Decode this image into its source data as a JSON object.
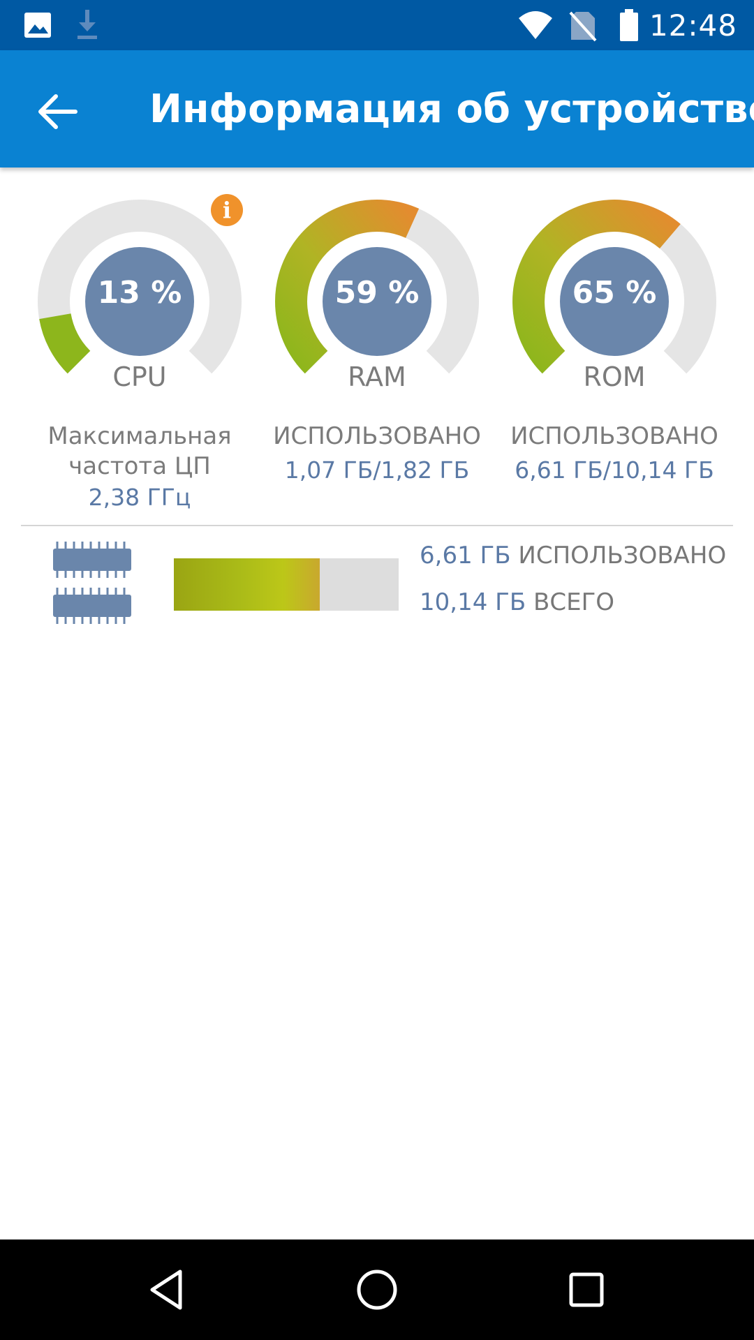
{
  "status_bar": {
    "time": "12:48",
    "icons": [
      "image-icon",
      "download-icon",
      "wifi-icon",
      "no-sim-icon",
      "battery-icon"
    ]
  },
  "app_bar": {
    "title": "Информация об устройстве",
    "back_icon": "arrow-left-icon"
  },
  "gauges": [
    {
      "id": "cpu",
      "percent_label": "13 %",
      "value": 0.13,
      "name": "CPU"
    },
    {
      "id": "ram",
      "percent_label": "59 %",
      "value": 0.59,
      "name": "RAM"
    },
    {
      "id": "rom",
      "percent_label": "65 %",
      "value": 0.65,
      "name": "ROM"
    }
  ],
  "info_badge": "i",
  "details": {
    "cpu": {
      "label_line1": "Максимальная",
      "label_line2": "частота ЦП",
      "value": "2,38 ГГц"
    },
    "ram": {
      "label": "ИСПОЛЬЗОВАНО",
      "value": "1,07  ГБ/1,82  ГБ"
    },
    "rom": {
      "label": "ИСПОЛЬЗОВАНО",
      "value": "6,61  ГБ/10,14  ГБ"
    }
  },
  "storage": {
    "used_amount": "6,61  ГБ",
    "used_label": "ИСПОЛЬЗОВАНО",
    "total_amount": "10,14  ГБ",
    "total_label": "ВСЕГО",
    "fill_fraction": 0.65
  },
  "colors": {
    "status_bar": "#0059a3",
    "app_bar": "#0a82d2",
    "gauge_track": "#e5e5e5",
    "gauge_center": "#6a86ab",
    "gauge_green": "#8db61c",
    "gauge_orange": "#e38c2f",
    "info_badge": "#f0922b"
  },
  "nav_bar": {
    "icons": [
      "back-triangle-icon",
      "home-circle-icon",
      "recents-square-icon"
    ]
  }
}
